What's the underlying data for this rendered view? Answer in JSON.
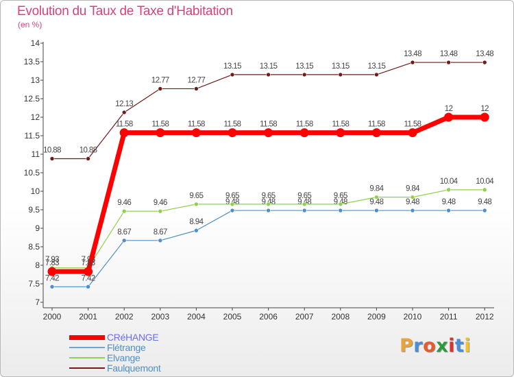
{
  "title": "Evolution du Taux de Taxe d'Habitation",
  "subtitle": "(en %)",
  "logo": {
    "letters": [
      "P",
      "r",
      "o",
      "x",
      "i",
      "t",
      "i"
    ],
    "colors": [
      "#e8a33d",
      "#4a8fd6",
      "#e65a2b",
      "#2f9a3b",
      "#d9342b",
      "#4a8fd6",
      "#f2c12e"
    ]
  },
  "chart_data": {
    "type": "line",
    "x": [
      "2000",
      "2001",
      "2002",
      "2003",
      "2004",
      "2005",
      "2006",
      "2007",
      "2008",
      "2009",
      "2010",
      "2011",
      "2012"
    ],
    "ylim": [
      7,
      14
    ],
    "yticks": [
      "7",
      "7.5",
      "8",
      "8.5",
      "9",
      "9.5",
      "10",
      "10.5",
      "11",
      "11.5",
      "12",
      "12.5",
      "13",
      "13.5",
      "14"
    ],
    "grid": false,
    "legend_position": "bottom-left",
    "series": [
      {
        "name": "Faulquemont",
        "color": "#6e1b1b",
        "values": [
          10.88,
          10.88,
          12.13,
          12.77,
          12.77,
          13.15,
          13.15,
          13.15,
          13.15,
          13.15,
          13.48,
          13.48,
          13.48
        ],
        "labels": [
          "10.88",
          "10.88",
          "12.13",
          "12.77",
          "12.77",
          "13.15",
          "13.15",
          "13.15",
          "13.15",
          "13.15",
          "13.48",
          "13.48",
          "13.48"
        ]
      },
      {
        "name": "Flétrange",
        "color": "#4f8fc5",
        "values": [
          7.42,
          7.42,
          8.67,
          8.67,
          8.94,
          9.48,
          9.48,
          9.48,
          9.48,
          9.48,
          9.48,
          9.48,
          9.48
        ],
        "labels": [
          "7.42",
          "7.42",
          "8.67",
          "8.67",
          "8.94",
          "9.48",
          "9.48",
          "9.48",
          "9.48",
          "9.48",
          "9.48",
          "9.48",
          "9.48"
        ]
      },
      {
        "name": "Elvange",
        "color": "#8fd14f",
        "values": [
          7.93,
          7.93,
          9.46,
          9.46,
          9.65,
          9.65,
          9.65,
          9.65,
          9.65,
          9.84,
          9.84,
          10.04,
          10.04
        ],
        "labels": [
          "7.93",
          "7.93",
          "9.46",
          "9.46",
          "9.65",
          "9.65",
          "9.65",
          "9.65",
          "9.65",
          "9.84",
          "9.84",
          "10.04",
          "10.04"
        ]
      },
      {
        "name": "CRéHANGE",
        "color": "#ff0000",
        "values": [
          7.83,
          7.83,
          11.58,
          11.58,
          11.58,
          11.58,
          11.58,
          11.58,
          11.58,
          11.58,
          11.58,
          12,
          12
        ],
        "labels": [
          "7.83",
          "7.83",
          "11.58",
          "11.58",
          "11.58",
          "11.58",
          "11.58",
          "11.58",
          "11.58",
          "11.58",
          "11.58",
          "12",
          "12"
        ]
      }
    ],
    "legend": [
      {
        "name": "CRéHANGE",
        "color": "#ff0000",
        "text_color": "#6a6ef0"
      },
      {
        "name": "Flétrange",
        "color": "#6fa3d0",
        "text_color": "#4f8fc5"
      },
      {
        "name": "Elvange",
        "color": "#8fd14f",
        "text_color": "#4f8fc5"
      },
      {
        "name": "Faulquemont",
        "color": "#6e1b1b",
        "text_color": "#4f8fc5"
      }
    ]
  }
}
